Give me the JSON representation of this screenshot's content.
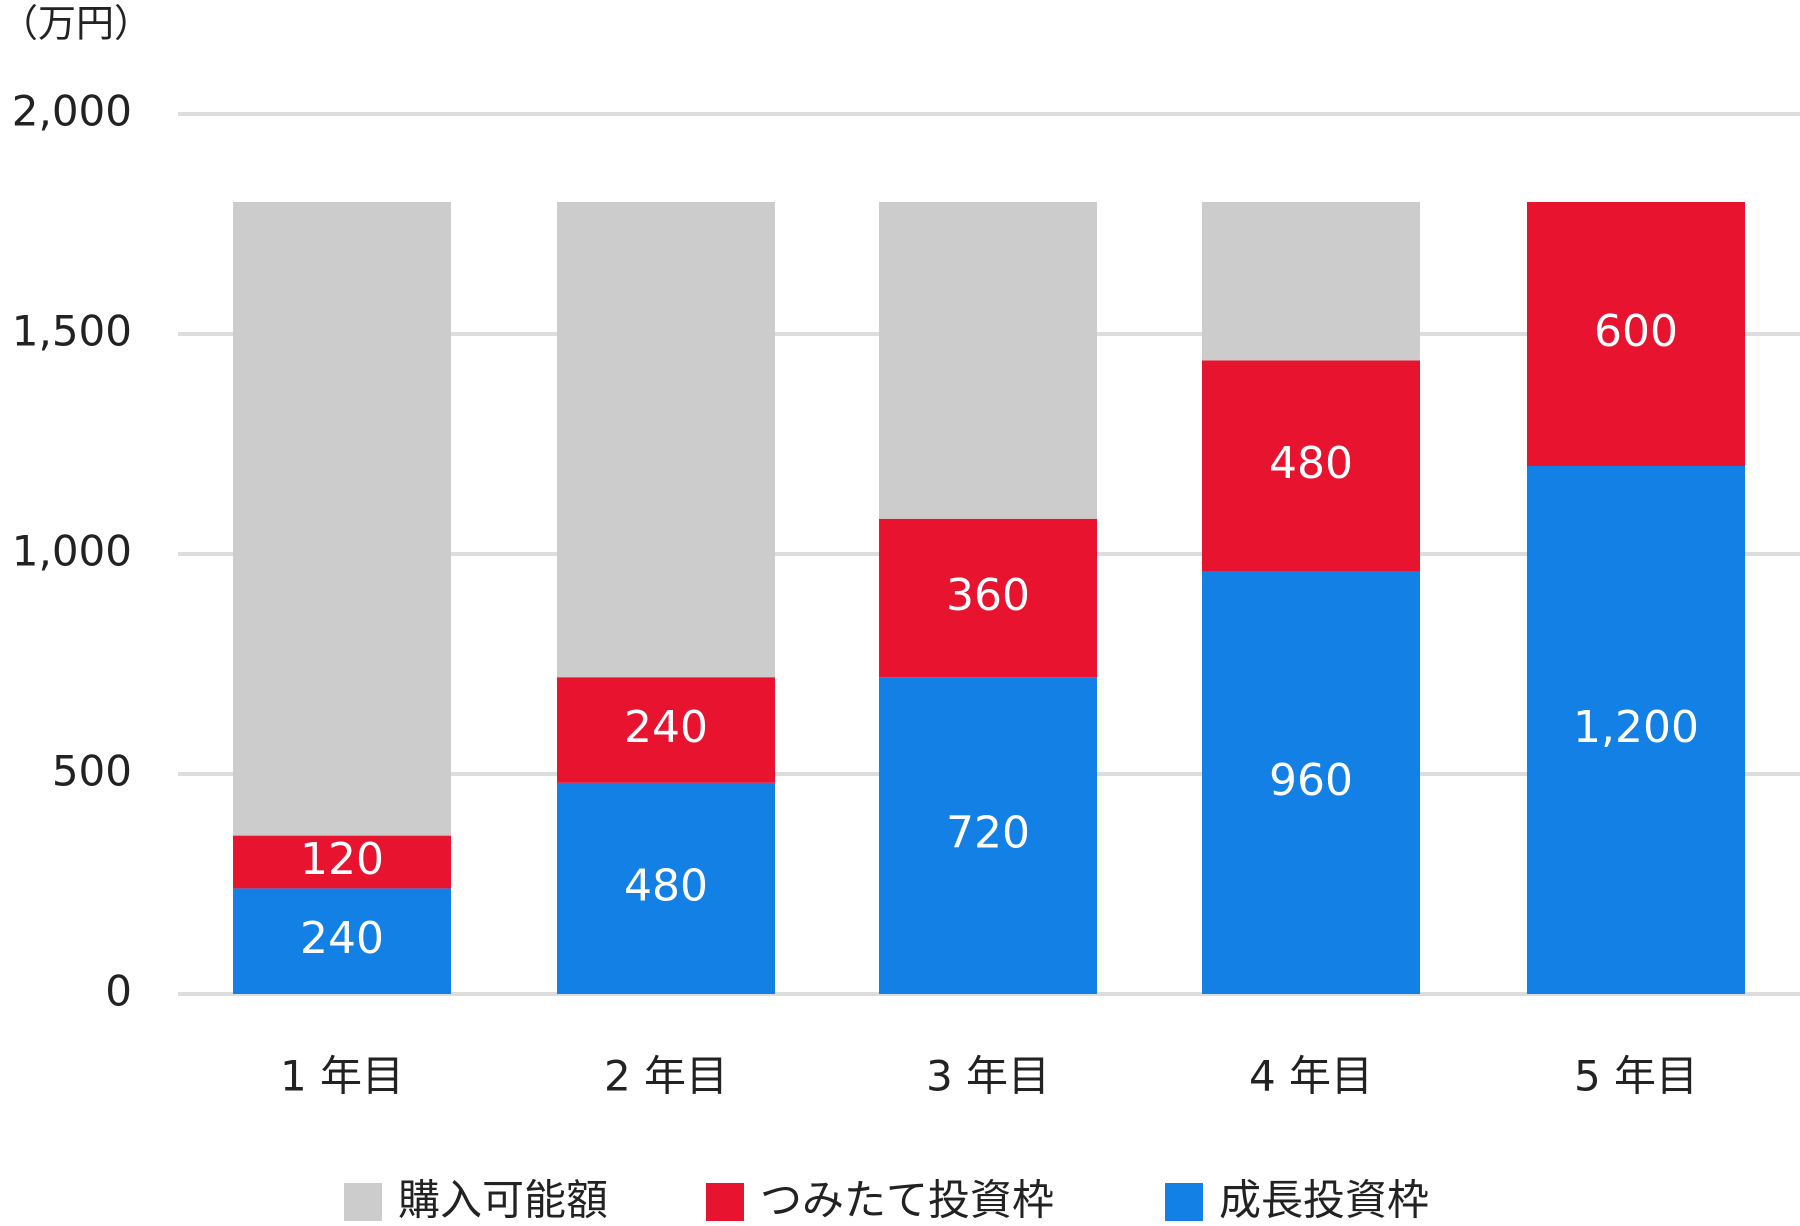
{
  "chart_data": {
    "type": "stacked_bar",
    "y_unit_label": "（万円）",
    "categories": [
      "1 年目",
      "2 年目",
      "3 年目",
      "4 年目",
      "5 年目"
    ],
    "series": [
      {
        "name": "成長投資枠",
        "color": "#1380e6",
        "values": [
          240,
          480,
          720,
          960,
          1200
        ],
        "value_labels": [
          "240",
          "480",
          "720",
          "960",
          "1,200"
        ],
        "data_labels": true
      },
      {
        "name": "つみたて投資枠",
        "color": "#e8132f",
        "values": [
          120,
          240,
          360,
          480,
          600
        ],
        "data_labels": true
      },
      {
        "name": "購入可能額",
        "color": "#cccccc",
        "values": [
          1440,
          1080,
          720,
          360,
          0
        ],
        "data_labels": false
      }
    ],
    "ylim": [
      0,
      2000
    ],
    "yticks": [
      0,
      500,
      {
        "value": 1000,
        "label": "1,000"
      },
      {
        "value": 1500,
        "label": "1,500"
      },
      {
        "value": 2000,
        "label": "2,000"
      }
    ],
    "grid": true,
    "legend": "bottom"
  }
}
